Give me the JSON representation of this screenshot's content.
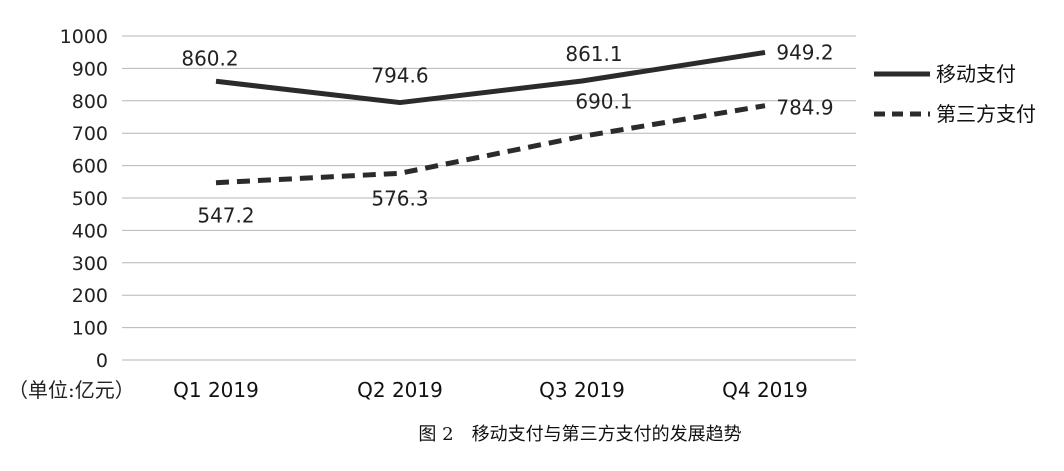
{
  "chart_data": {
    "type": "line",
    "categories": [
      "Q1 2019",
      "Q2 2019",
      "Q3 2019",
      "Q4 2019"
    ],
    "ylim": [
      0,
      1000
    ],
    "yticks": [
      0,
      100,
      200,
      300,
      400,
      500,
      600,
      700,
      800,
      900,
      1000
    ],
    "grid": true,
    "legend_position": "right",
    "unit_label": "（单位:亿元）",
    "caption": "图 2　移动支付与第三方支付的发展趋势",
    "series": [
      {
        "name": "移动支付",
        "values": [
          860.2,
          794.6,
          861.1,
          949.2
        ],
        "labels": [
          "860.2",
          "794.6",
          "861.1",
          "949.2"
        ],
        "style": "solid",
        "color": "#2b2b2b"
      },
      {
        "name": "第三方支付",
        "values": [
          547.2,
          576.3,
          690.1,
          784.9
        ],
        "labels": [
          "547.2",
          "576.3",
          "690.1",
          "784.9"
        ],
        "style": "dashed",
        "color": "#2b2b2b"
      }
    ]
  }
}
